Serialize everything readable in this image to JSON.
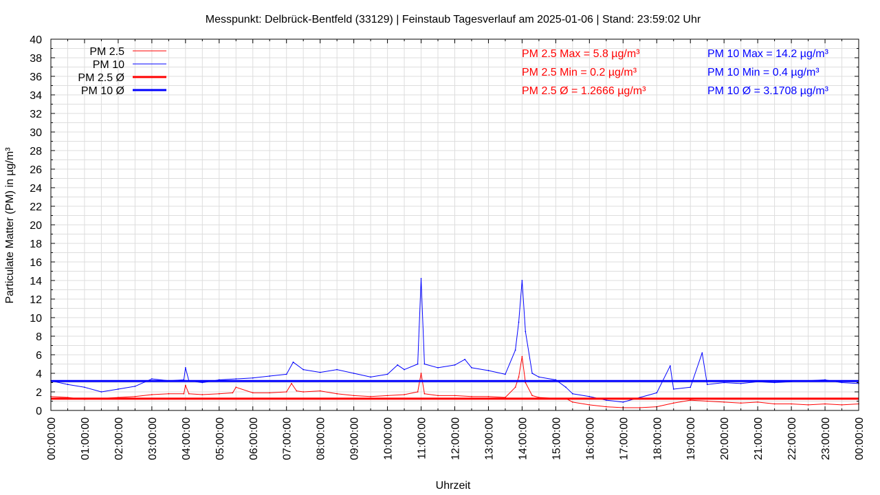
{
  "chart_data": {
    "type": "line",
    "title": "Messpunkt: Delbrück-Bentfeld (33129) | Feinstaub Tagesverlauf am 2025-01-06 | Stand: 23:59:02 Uhr",
    "xlabel": "Uhrzeit",
    "ylabel": "Particulate Matter (PM) in µg/m³",
    "ylim": [
      0,
      40
    ],
    "yticks": [
      "0",
      "2",
      "4",
      "6",
      "8",
      "10",
      "12",
      "14",
      "16",
      "18",
      "20",
      "22",
      "24",
      "26",
      "28",
      "30",
      "32",
      "34",
      "36",
      "38",
      "40"
    ],
    "xlim_hours": [
      0,
      24
    ],
    "xticks": [
      "00:00:00",
      "01:00:00",
      "02:00:00",
      "03:00:00",
      "04:00:00",
      "05:00:00",
      "06:00:00",
      "07:00:00",
      "08:00:00",
      "09:00:00",
      "10:00:00",
      "11:00:00",
      "12:00:00",
      "13:00:00",
      "14:00:00",
      "15:00:00",
      "16:00:00",
      "17:00:00",
      "18:00:00",
      "19:00:00",
      "20:00:00",
      "21:00:00",
      "22:00:00",
      "23:00:00",
      "00:00:00"
    ],
    "grid": true,
    "legend_position": "top-left",
    "series": [
      {
        "name": "PM 2.5",
        "color": "#ff0000",
        "style": "thin",
        "x_hours": [
          0,
          0.5,
          1,
          1.5,
          2,
          2.5,
          3,
          3.5,
          3.95,
          4.0,
          4.1,
          4.5,
          5,
          5.4,
          5.5,
          6,
          6.5,
          7,
          7.15,
          7.3,
          7.5,
          8,
          8.5,
          9,
          9.5,
          10,
          10.5,
          10.9,
          11.0,
          11.1,
          11.5,
          12,
          12.5,
          13,
          13.5,
          13.8,
          13.9,
          14.0,
          14.1,
          14.3,
          14.5,
          15,
          15.3,
          15.5,
          16,
          16.5,
          17,
          17.5,
          18,
          18.5,
          19,
          19.5,
          20,
          20.5,
          21,
          21.5,
          22,
          22.5,
          23,
          23.5,
          24
        ],
        "values": [
          1.5,
          1.4,
          1.2,
          1.3,
          1.4,
          1.5,
          1.7,
          1.8,
          1.8,
          2.7,
          1.8,
          1.7,
          1.8,
          1.9,
          2.5,
          1.9,
          1.9,
          2.0,
          2.9,
          2.1,
          2.0,
          2.1,
          1.8,
          1.6,
          1.5,
          1.6,
          1.7,
          2.0,
          4.0,
          1.8,
          1.6,
          1.6,
          1.5,
          1.5,
          1.4,
          2.5,
          3.6,
          5.8,
          3.0,
          1.6,
          1.4,
          1.3,
          1.3,
          0.9,
          0.6,
          0.4,
          0.3,
          0.3,
          0.4,
          0.8,
          1.1,
          1.0,
          0.9,
          0.8,
          0.9,
          0.7,
          0.7,
          0.6,
          0.7,
          0.6,
          0.7
        ]
      },
      {
        "name": "PM 10",
        "color": "#0000ff",
        "style": "thin",
        "x_hours": [
          0,
          0.5,
          1,
          1.5,
          2,
          2.5,
          3,
          3.5,
          3.95,
          4.0,
          4.1,
          4.5,
          5,
          5.5,
          6,
          6.5,
          7,
          7.2,
          7.5,
          8,
          8.5,
          9,
          9.5,
          10,
          10.3,
          10.5,
          10.9,
          11.0,
          11.1,
          11.5,
          12,
          12.3,
          12.5,
          13,
          13.5,
          13.8,
          13.9,
          14.0,
          14.1,
          14.3,
          14.5,
          15,
          15.3,
          15.5,
          16,
          16.5,
          17,
          17.5,
          18,
          18.4,
          18.5,
          19,
          19.35,
          19.5,
          20,
          20.5,
          21,
          21.5,
          22,
          22.5,
          23,
          23.5,
          24
        ],
        "values": [
          3.2,
          2.8,
          2.5,
          2.0,
          2.3,
          2.6,
          3.4,
          3.2,
          3.3,
          4.6,
          3.2,
          3.0,
          3.3,
          3.4,
          3.5,
          3.7,
          3.9,
          5.2,
          4.4,
          4.1,
          4.4,
          4.0,
          3.6,
          3.9,
          4.9,
          4.4,
          5.0,
          14.2,
          5.0,
          4.6,
          4.9,
          5.5,
          4.6,
          4.3,
          3.9,
          6.5,
          9.5,
          14.0,
          8.5,
          4.0,
          3.6,
          3.3,
          2.5,
          1.8,
          1.5,
          1.1,
          0.9,
          1.4,
          1.9,
          4.8,
          2.3,
          2.5,
          6.2,
          2.8,
          3.0,
          2.9,
          3.1,
          3.0,
          3.1,
          3.2,
          3.3,
          3.0,
          2.9
        ]
      },
      {
        "name": "PM 2.5 Ø",
        "color": "#ff0000",
        "style": "thick",
        "mean": 1.2666
      },
      {
        "name": "PM 10 Ø",
        "color": "#0000ff",
        "style": "thick",
        "mean": 3.1708
      }
    ],
    "stats": [
      {
        "text": "PM 2.5 Max = 5.8 µg/m³",
        "color": "#ff0000"
      },
      {
        "text": "PM 2.5 Min = 0.2 µg/m³",
        "color": "#ff0000"
      },
      {
        "text": "PM 2.5 Ø = 1.2666 µg/m³",
        "color": "#ff0000"
      },
      {
        "text": "PM 10 Max = 14.2 µg/m³",
        "color": "#0000ff"
      },
      {
        "text": "PM 10 Min = 0.4 µg/m³",
        "color": "#0000ff"
      },
      {
        "text": "PM 10 Ø = 3.1708 µg/m³",
        "color": "#0000ff"
      }
    ]
  }
}
